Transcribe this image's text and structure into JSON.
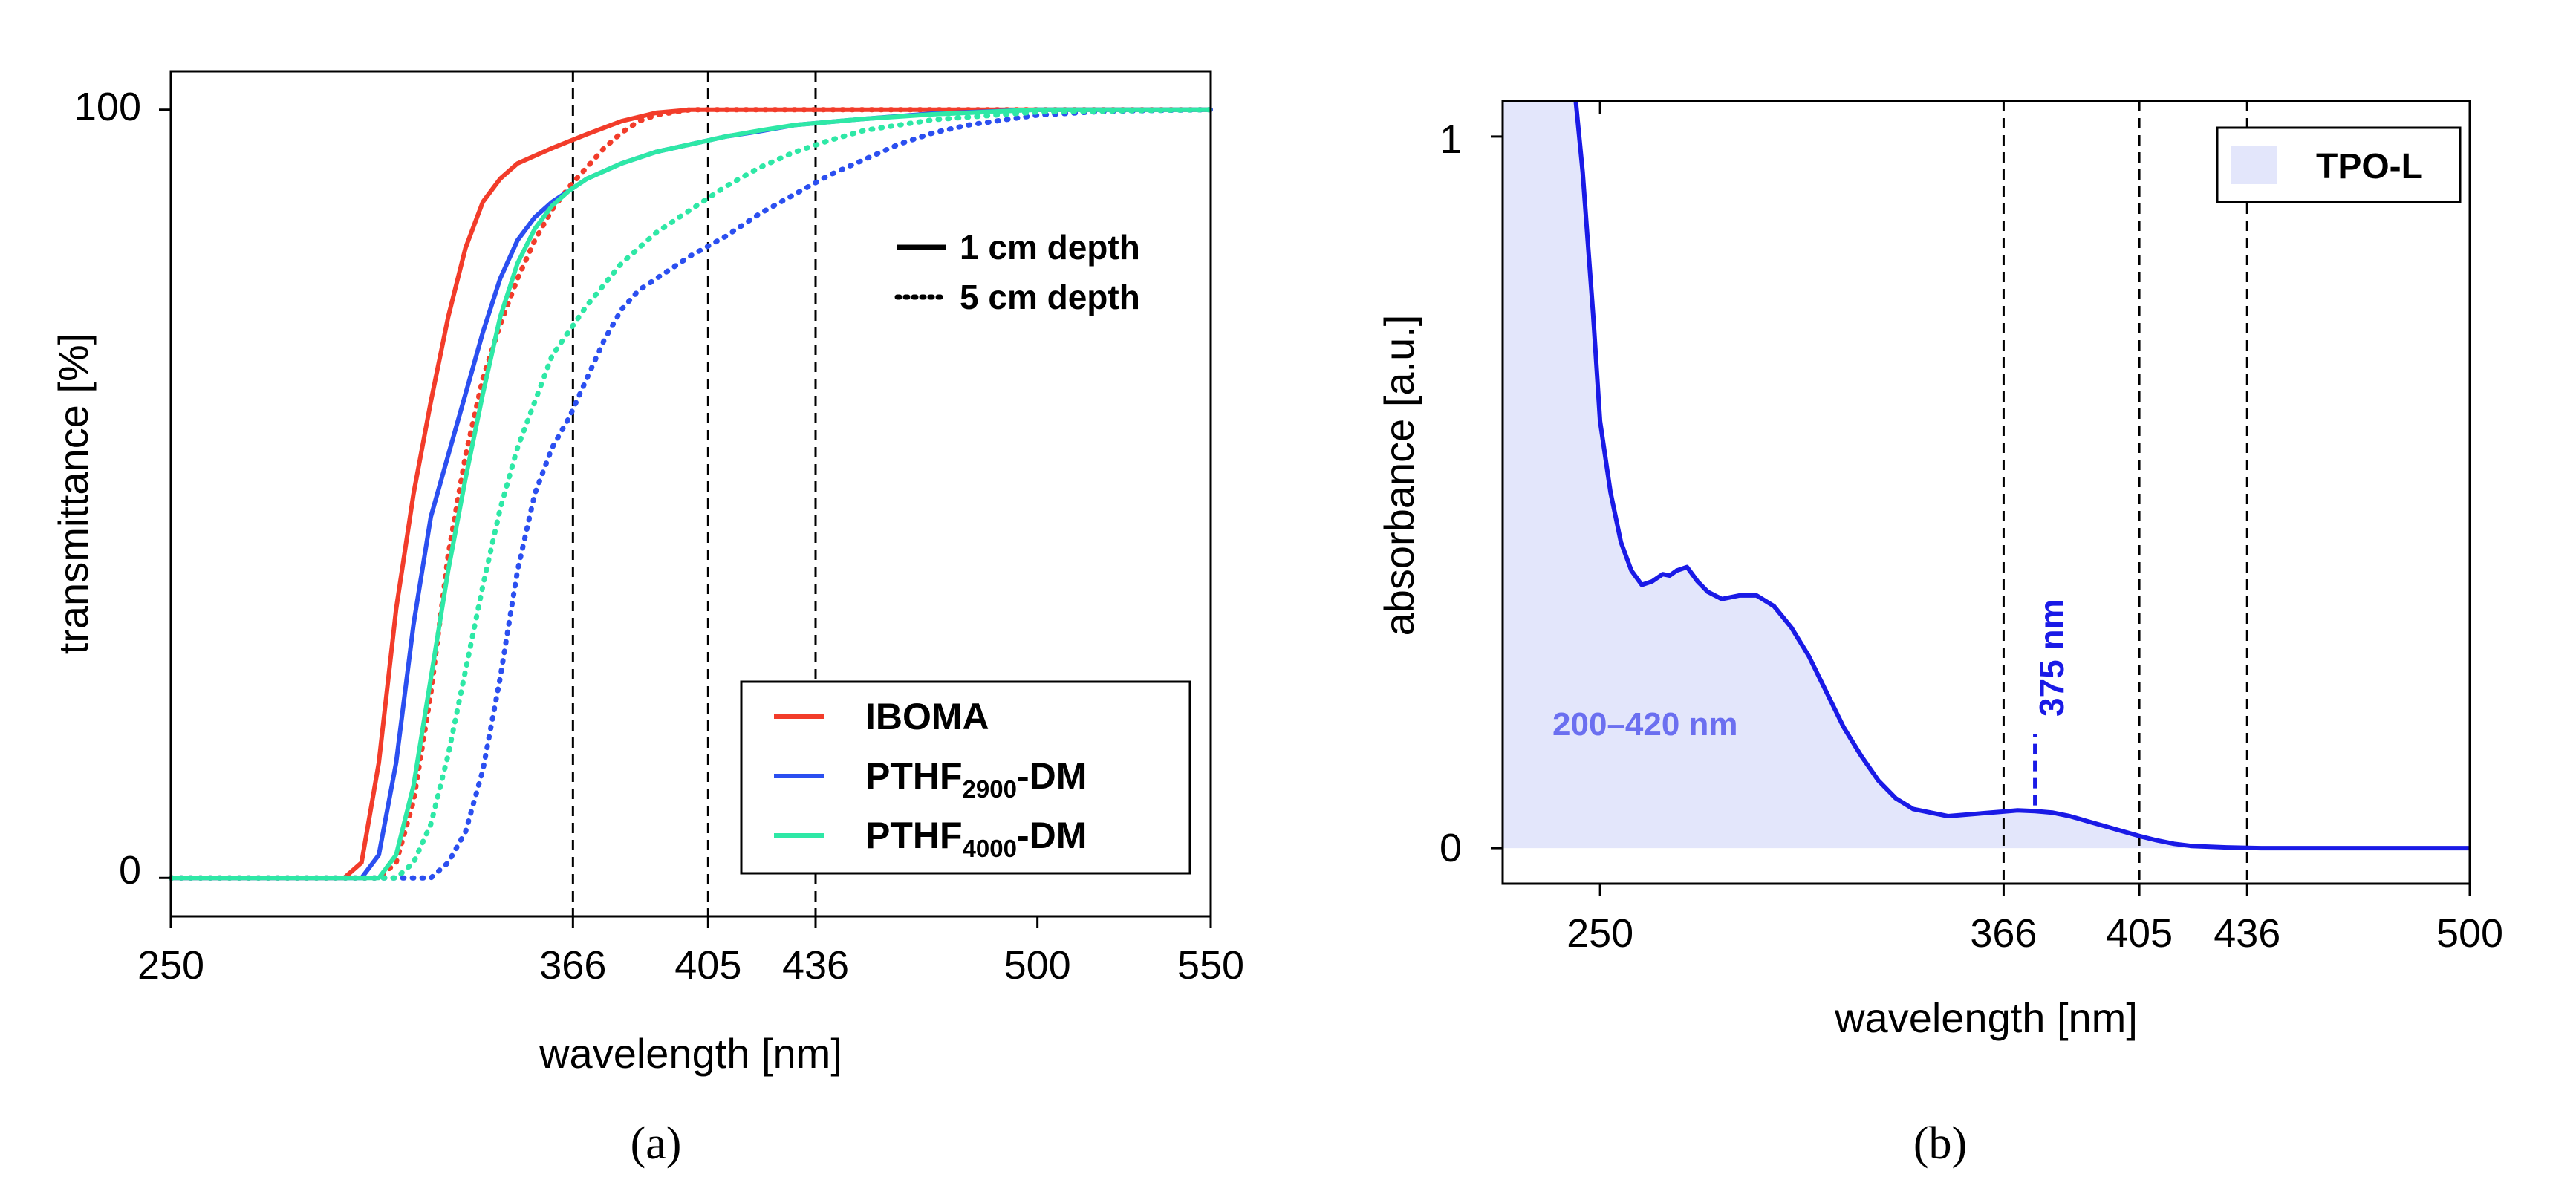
{
  "chart_data": [
    {
      "panel": "a",
      "type": "line",
      "caption": "(a)",
      "xlabel": "wavelength [nm]",
      "ylabel": "transmittance [%]",
      "xlim": [
        250,
        550
      ],
      "ylim": [
        -5,
        105
      ],
      "xticks": [
        "250",
        "366",
        "405",
        "436",
        "500",
        "550"
      ],
      "yticks": [
        "0",
        "100"
      ],
      "vlines": [
        366,
        405,
        436
      ],
      "style_legend": [
        {
          "label": "1 cm depth",
          "style": "solid"
        },
        {
          "label": "5 cm depth",
          "style": "dotted"
        }
      ],
      "legend": [
        {
          "base": "IBOMA",
          "sub": "",
          "suffix": "",
          "color": "#f23c2a"
        },
        {
          "base": "PTHF",
          "sub": "2900",
          "suffix": "-DM",
          "color": "#2b4ff0"
        },
        {
          "base": "PTHF",
          "sub": "4000",
          "suffix": "-DM",
          "color": "#2ee8a6"
        }
      ],
      "series": [
        {
          "name": "IBOMA 1 cm depth",
          "color": "#f23c2a",
          "dash": "solid",
          "x": [
            250,
            300,
            305,
            310,
            315,
            320,
            325,
            330,
            335,
            340,
            345,
            350,
            360,
            370,
            380,
            390,
            400,
            410,
            550
          ],
          "y": [
            0,
            0,
            2,
            15,
            35,
            50,
            62,
            73,
            82,
            88,
            91,
            93,
            95,
            96.8,
            98.5,
            99.6,
            100,
            100,
            100
          ]
        },
        {
          "name": "IBOMA 5 cm depth",
          "color": "#f23c2a",
          "dash": "dotted",
          "x": [
            250,
            310,
            315,
            320,
            325,
            330,
            335,
            340,
            345,
            350,
            355,
            360,
            365,
            370,
            375,
            380,
            385,
            390,
            400,
            410,
            550
          ],
          "y": [
            0,
            0,
            2,
            10,
            24,
            42,
            55,
            65,
            72,
            78,
            83,
            87,
            90,
            92.5,
            95,
            97,
            98.5,
            99.3,
            100,
            100,
            100
          ]
        },
        {
          "name": "PTHF2900-DM 1 cm depth",
          "color": "#2b4ff0",
          "dash": "solid",
          "x": [
            250,
            305,
            310,
            315,
            320,
            325,
            330,
            335,
            340,
            345,
            350,
            355,
            360,
            365,
            370,
            380,
            390,
            400,
            410,
            420,
            430,
            450,
            470,
            500,
            550
          ],
          "y": [
            0,
            0,
            3,
            15,
            33,
            47,
            55,
            63,
            71,
            78,
            83,
            86,
            88,
            89.5,
            91,
            93,
            94.5,
            95.5,
            96.5,
            97.2,
            98,
            98.8,
            99.5,
            100,
            100
          ]
        },
        {
          "name": "PTHF2900-DM 5 cm depth",
          "color": "#2b4ff0",
          "dash": "dotted",
          "x": [
            250,
            325,
            330,
            335,
            340,
            345,
            350,
            355,
            360,
            365,
            370,
            375,
            380,
            385,
            390,
            400,
            410,
            420,
            430,
            440,
            450,
            460,
            470,
            480,
            500,
            520,
            550
          ],
          "y": [
            0,
            0,
            2,
            6,
            14,
            26,
            40,
            50,
            56,
            60,
            65,
            70,
            74,
            76.5,
            78,
            81,
            83.5,
            86.5,
            89,
            91.5,
            93.5,
            95.5,
            97,
            98,
            99.3,
            99.8,
            100
          ]
        },
        {
          "name": "PTHF4000-DM 1 cm depth",
          "color": "#2ee8a6",
          "dash": "solid",
          "x": [
            250,
            310,
            315,
            320,
            325,
            330,
            335,
            340,
            345,
            350,
            355,
            360,
            365,
            370,
            380,
            390,
            400,
            410,
            420,
            430,
            450,
            470,
            500,
            550
          ],
          "y": [
            0,
            0,
            3,
            12,
            26,
            40,
            52,
            63,
            73,
            80,
            84.5,
            87.5,
            89.5,
            91,
            93,
            94.5,
            95.5,
            96.5,
            97.3,
            98,
            98.8,
            99.4,
            100,
            100
          ]
        },
        {
          "name": "PTHF4000-DM 5 cm depth",
          "color": "#2ee8a6",
          "dash": "dotted",
          "x": [
            250,
            315,
            320,
            325,
            330,
            335,
            340,
            345,
            350,
            355,
            360,
            370,
            380,
            390,
            400,
            410,
            420,
            430,
            440,
            450,
            470,
            500,
            550
          ],
          "y": [
            0,
            0,
            2,
            7,
            16,
            27,
            38,
            48,
            56,
            62,
            68,
            74.5,
            80,
            84,
            87,
            90,
            92.5,
            94.5,
            96,
            97.3,
            98.7,
            99.7,
            100
          ]
        }
      ]
    },
    {
      "panel": "b",
      "type": "area",
      "caption": "(b)",
      "xlabel": "wavelength [nm]",
      "ylabel": "absorbance [a.u.]",
      "xlim": [
        222,
        500
      ],
      "ylim": [
        -0.05,
        1.05
      ],
      "xticks": [
        "250",
        "366",
        "405",
        "436",
        "500"
      ],
      "yticks": [
        "0",
        "1"
      ],
      "vlines": [
        366,
        405,
        436
      ],
      "legend": [
        {
          "label": "TPO-L",
          "color": "#e3e6fb"
        }
      ],
      "shaded_region_label": "200–420 nm",
      "peak_annotation": "375 nm",
      "peak_x": 375,
      "series": [
        {
          "name": "TPO-L",
          "color": "#1a1ae6",
          "x": [
            243,
            245,
            248,
            250,
            253,
            256,
            259,
            262,
            265,
            268,
            270,
            272,
            275,
            278,
            281,
            285,
            290,
            295,
            300,
            305,
            310,
            315,
            320,
            325,
            330,
            335,
            340,
            350,
            360,
            365,
            370,
            375,
            380,
            385,
            390,
            395,
            400,
            405,
            410,
            415,
            420,
            430,
            440,
            460,
            500
          ],
          "y": [
            1.05,
            0.95,
            0.75,
            0.6,
            0.5,
            0.43,
            0.39,
            0.37,
            0.375,
            0.385,
            0.383,
            0.39,
            0.395,
            0.375,
            0.36,
            0.35,
            0.355,
            0.355,
            0.34,
            0.31,
            0.27,
            0.22,
            0.17,
            0.13,
            0.095,
            0.07,
            0.055,
            0.045,
            0.049,
            0.051,
            0.053,
            0.052,
            0.05,
            0.045,
            0.038,
            0.031,
            0.024,
            0.017,
            0.011,
            0.006,
            0.003,
            0.001,
            0,
            0,
            0
          ]
        }
      ]
    }
  ]
}
